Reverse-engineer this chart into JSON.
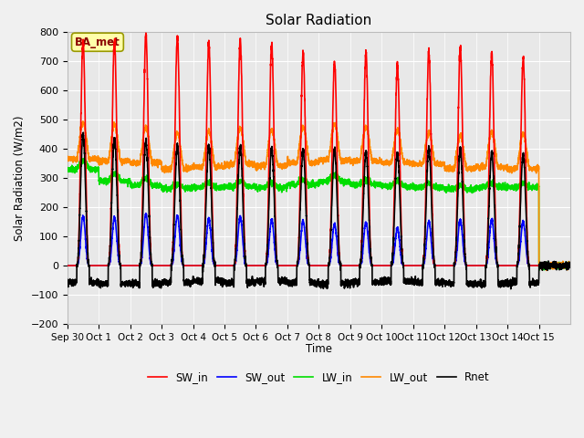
{
  "title": "Solar Radiation",
  "ylabel": "Solar Radiation (W/m2)",
  "xlabel": "Time",
  "ylim": [
    -200,
    800
  ],
  "yticks": [
    -200,
    -100,
    0,
    100,
    200,
    300,
    400,
    500,
    600,
    700,
    800
  ],
  "fig_bg_color": "#f0f0f0",
  "plot_bg_color": "#e8e8e8",
  "grid_color": "white",
  "label_box_text": "BA_met",
  "label_box_facecolor": "#ffffaa",
  "label_box_edgecolor": "#999900",
  "colors": {
    "SW_in": "#ff0000",
    "SW_out": "#0000ff",
    "LW_in": "#00dd00",
    "LW_out": "#ff8800",
    "Rnet": "#000000"
  },
  "lw": 1.2,
  "n_days": 16,
  "day_labels": [
    "Sep 30",
    "Oct 1",
    "Oct 2",
    "Oct 3",
    "Oct 4",
    "Oct 5",
    "Oct 6",
    "Oct 7",
    "Oct 8",
    "Oct 9",
    "Oct 10",
    "Oct 11",
    "Oct 12",
    "Oct 13",
    "Oct 14",
    "Oct 15"
  ],
  "SW_in_peaks": [
    770,
    770,
    795,
    780,
    765,
    775,
    760,
    730,
    700,
    725,
    690,
    730,
    745,
    730,
    710,
    0
  ],
  "SW_out_peaks": [
    170,
    165,
    178,
    172,
    162,
    168,
    158,
    152,
    142,
    148,
    128,
    152,
    158,
    158,
    152,
    0
  ],
  "LW_in_base_night": [
    330,
    290,
    275,
    265,
    268,
    272,
    268,
    278,
    288,
    278,
    272,
    268,
    262,
    268,
    268,
    262
  ],
  "LW_in_base_day": [
    360,
    315,
    300,
    280,
    285,
    290,
    285,
    295,
    310,
    295,
    288,
    282,
    275,
    282,
    282,
    275
  ],
  "LW_out_base_night": [
    365,
    358,
    352,
    332,
    338,
    348,
    342,
    352,
    362,
    358,
    352,
    348,
    332,
    338,
    332,
    328
  ],
  "LW_out_peaks": [
    490,
    482,
    475,
    455,
    460,
    470,
    465,
    475,
    485,
    475,
    465,
    455,
    448,
    458,
    453,
    448
  ],
  "Rnet_night": [
    -58,
    -62,
    -62,
    -58,
    -53,
    -58,
    -53,
    -58,
    -62,
    -58,
    -53,
    -58,
    -62,
    -62,
    -58,
    -53
  ],
  "Rnet_day_peaks": [
    450,
    435,
    428,
    408,
    412,
    408,
    402,
    398,
    398,
    388,
    388,
    402,
    398,
    388,
    382,
    0
  ]
}
